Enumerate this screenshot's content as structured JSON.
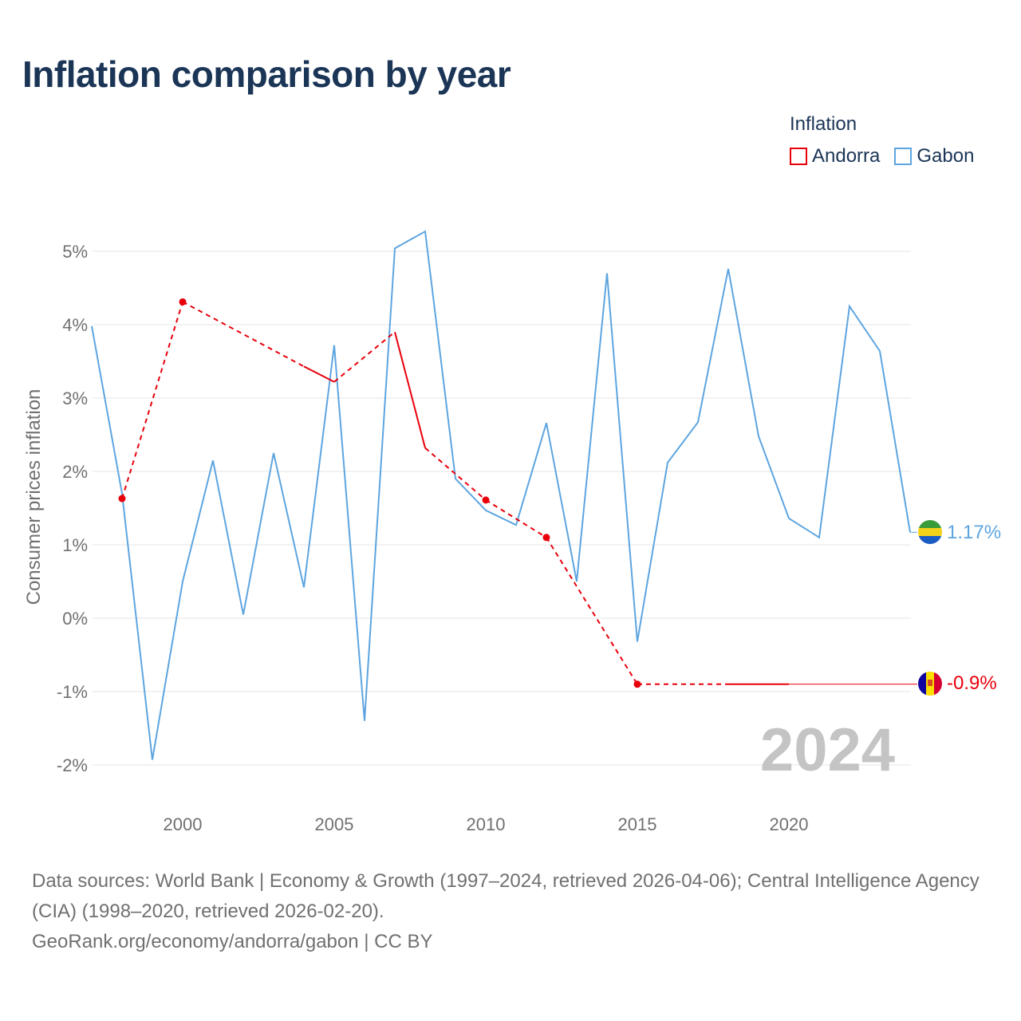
{
  "title": "Inflation comparison by year",
  "legend": {
    "title": "Inflation",
    "items": [
      {
        "label": "Andorra",
        "color": "#e8000b"
      },
      {
        "label": "Gabon",
        "color": "#5da5e0"
      }
    ]
  },
  "year_label": "2024",
  "footer": {
    "sources": "Data sources: World Bank | Economy & Growth (1997–2024, retrieved 2026-04-06); Central Intelligence Agency (CIA) (1998–2020, retrieved 2026-02-20).",
    "credit": "GeoRank.org/economy/andorra/gabon | CC BY"
  },
  "chart_data": {
    "type": "line",
    "title": "Inflation comparison by year",
    "xlabel": "",
    "ylabel": "Consumer prices inflation",
    "xlim": [
      1997,
      2024
    ],
    "ylim": [
      -2.2,
      5.6
    ],
    "x_ticks": [
      2000,
      2005,
      2010,
      2015,
      2020
    ],
    "y_ticks": [
      {
        "value": 5,
        "label": "5%"
      },
      {
        "value": 4,
        "label": "4%"
      },
      {
        "value": 3,
        "label": "3%"
      },
      {
        "value": 2,
        "label": "2%"
      },
      {
        "value": 1,
        "label": "1%"
      },
      {
        "value": 0,
        "label": "0%"
      },
      {
        "value": -1,
        "label": "-1%"
      },
      {
        "value": -2,
        "label": "-2%"
      }
    ],
    "grid": true,
    "legend_position": "top-right",
    "series": [
      {
        "name": "Gabon",
        "color": "#5da5e0",
        "end_label": "1.17%",
        "x": [
          1997,
          1998,
          1999,
          2000,
          2001,
          2002,
          2003,
          2004,
          2005,
          2006,
          2007,
          2008,
          2009,
          2010,
          2011,
          2012,
          2013,
          2014,
          2015,
          2016,
          2017,
          2018,
          2019,
          2020,
          2021,
          2022,
          2023,
          2024
        ],
        "y": [
          3.98,
          1.7,
          -1.93,
          0.5,
          2.15,
          0.05,
          2.25,
          0.42,
          3.72,
          -1.4,
          5.04,
          5.27,
          1.9,
          1.47,
          1.27,
          2.66,
          0.5,
          4.7,
          -0.32,
          2.12,
          2.67,
          4.76,
          2.48,
          1.36,
          1.1,
          4.25,
          3.64,
          1.17
        ]
      },
      {
        "name": "Andorra",
        "color": "#e8000b",
        "end_label": "-0.9%",
        "x": [
          1998,
          2000,
          2004,
          2005,
          2007,
          2008,
          2010,
          2012,
          2015,
          2018,
          2020,
          2024
        ],
        "y": [
          1.63,
          4.31,
          3.43,
          3.22,
          3.9,
          2.32,
          1.61,
          1.1,
          -0.9,
          -0.9,
          -0.9,
          -0.9
        ],
        "observed_points": [
          1998,
          2000,
          2010,
          2012,
          2015
        ]
      }
    ]
  }
}
